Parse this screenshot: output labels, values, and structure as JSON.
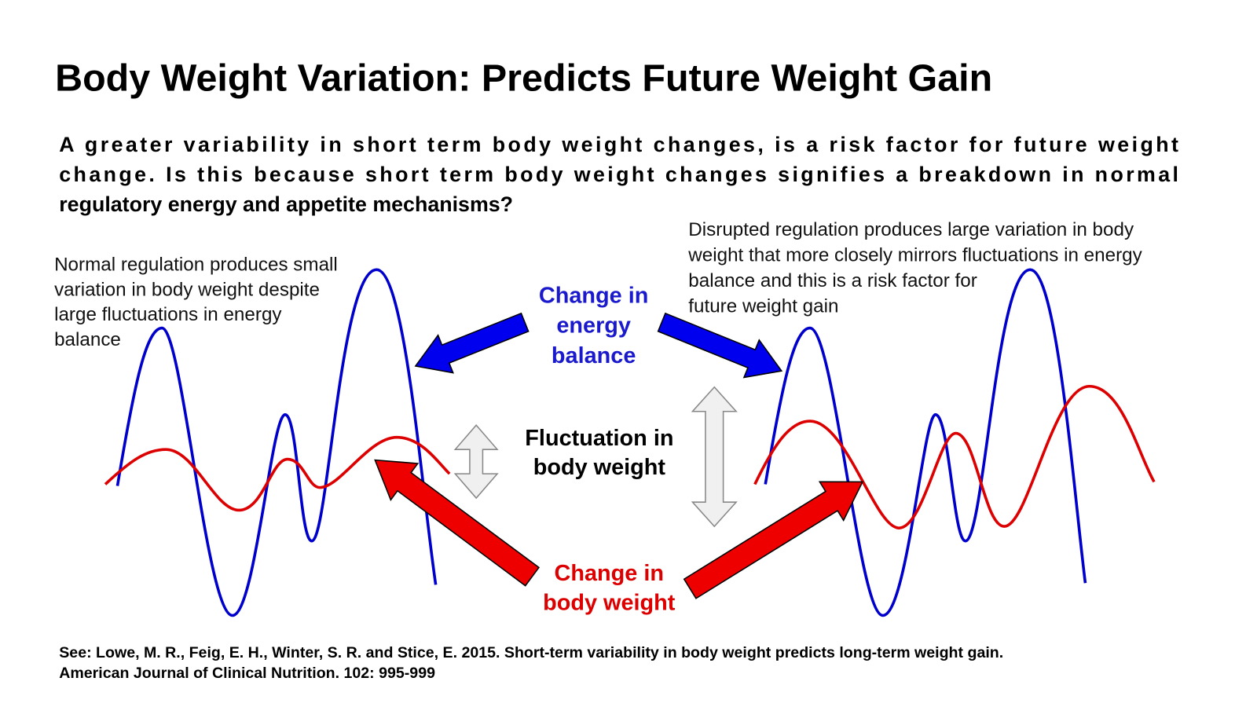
{
  "title": "Body Weight Variation: Predicts Future Weight Gain",
  "subtitle": {
    "lines": [
      "A greater variability in short term body weight changes, is a risk factor for future weight",
      "change. Is this because short term body weight changes signifies a breakdown in normal",
      "regulatory energy and appetite mechanisms?"
    ]
  },
  "note_left": {
    "lines": [
      "Normal regulation produces small",
      "variation in body weight despite",
      "large fluctuations in energy",
      "balance"
    ]
  },
  "note_right": {
    "lines": [
      "Disrupted regulation produces large variation in body",
      "weight that more closely mirrors fluctuations in energy",
      "balance and this is a risk factor for",
      "future weight gain"
    ]
  },
  "label_energy": {
    "lines": [
      "Change in",
      "energy",
      "balance"
    ]
  },
  "label_fluctuation": {
    "lines": [
      "Fluctuation in",
      "body weight"
    ]
  },
  "label_weight": {
    "lines": [
      "Change in",
      "body weight"
    ]
  },
  "reference": {
    "lines": [
      "See: Lowe, M. R., Feig, E. H., Winter, S. R. and Stice, E. 2015. Short-term variability in body weight predicts long-term weight gain.",
      "American Journal of Clinical Nutrition. 102: 995-999"
    ]
  }
}
